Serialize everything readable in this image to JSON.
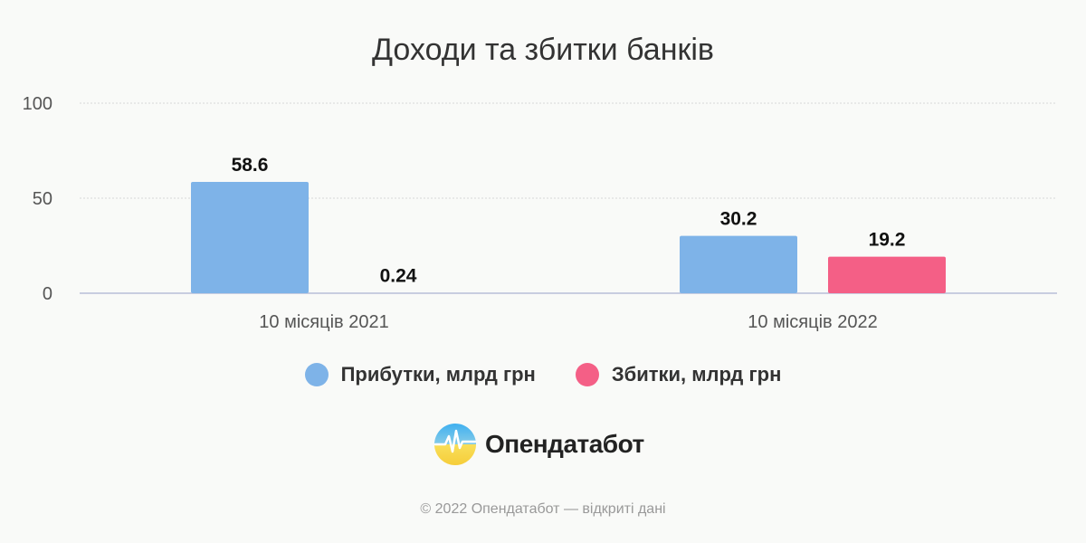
{
  "chart_data": {
    "type": "bar",
    "title": "Доходи та збитки банків",
    "categories": [
      "10 місяців 2021",
      "10 місяців 2022"
    ],
    "series": [
      {
        "name": "Прибутки, млрд грн",
        "values": [
          58.6,
          30.2
        ],
        "labels": [
          "58.6",
          "30.2"
        ],
        "color": "#7eb3e8"
      },
      {
        "name": "Збитки, млрд грн",
        "values": [
          0.24,
          19.2
        ],
        "labels": [
          "0.24",
          "19.2"
        ],
        "color": "#f45f86"
      }
    ],
    "ylim": [
      0,
      100
    ],
    "yticks": [
      0,
      50,
      100
    ],
    "ytick_labels": [
      "0",
      "50",
      "100"
    ],
    "xlabel": "",
    "ylabel": "",
    "grid": true,
    "legend_position": "bottom"
  },
  "brand": {
    "name": "Опендатабот",
    "logo_icon": "opendatabot-logo-icon"
  },
  "footer": {
    "text": "© 2022 Опендатабот — відкриті дані"
  }
}
